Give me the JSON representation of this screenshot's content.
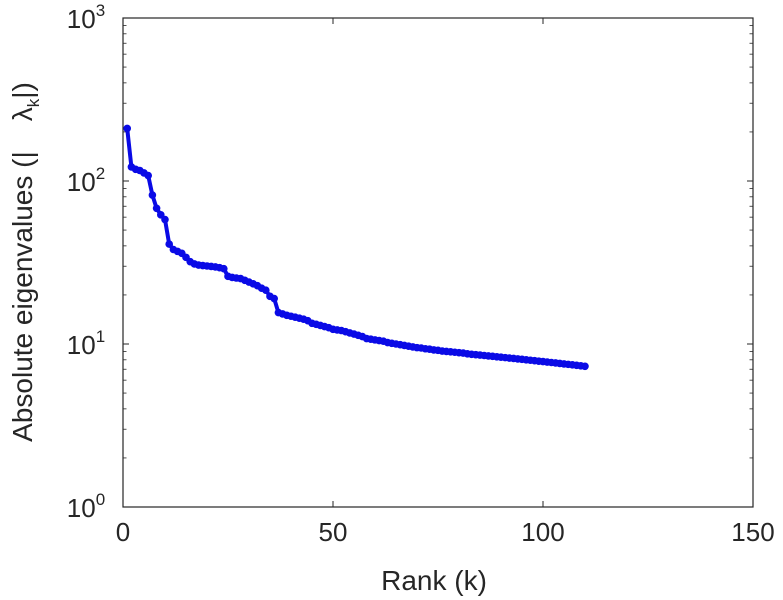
{
  "chart_data": {
    "type": "line",
    "title": "",
    "xlabel": "Rank (k)",
    "ylabel_parts": [
      "Absolute eigenvalues (|",
      "λ",
      "k",
      "|)"
    ],
    "xlim": [
      0,
      150
    ],
    "ylim": [
      1,
      1000
    ],
    "yscale": "log",
    "grid": false,
    "legend": "none",
    "x_ticks": [
      0,
      50,
      100,
      150
    ],
    "y_ticks": [
      {
        "base": "10",
        "exp": "0",
        "value": 1
      },
      {
        "base": "10",
        "exp": "1",
        "value": 10
      },
      {
        "base": "10",
        "exp": "2",
        "value": 100
      },
      {
        "base": "10",
        "exp": "3",
        "value": 1000
      }
    ],
    "line_color": "#0a0ae6",
    "series": [
      {
        "x": [
          1,
          2,
          3,
          4,
          5,
          6,
          7,
          8,
          9,
          10,
          11,
          12,
          13,
          14,
          15,
          16,
          17,
          18,
          19,
          20,
          21,
          22,
          23,
          24,
          25,
          26,
          27,
          28,
          29,
          30,
          31,
          32,
          33,
          34,
          35,
          36,
          37,
          38,
          39,
          40,
          41,
          42,
          43,
          44,
          45,
          46,
          47,
          48,
          49,
          50,
          51,
          52,
          53,
          54,
          55,
          56,
          57,
          58,
          59,
          60,
          61,
          62,
          63,
          64,
          65,
          66,
          67,
          68,
          69,
          70,
          71,
          72,
          73,
          74,
          75,
          76,
          77,
          78,
          79,
          80,
          81,
          82,
          83,
          84,
          85,
          86,
          87,
          88,
          89,
          90,
          91,
          92,
          93,
          94,
          95,
          96,
          97,
          98,
          99,
          100,
          101,
          102,
          103,
          104,
          105,
          106,
          107,
          108,
          109,
          110
        ],
        "y": [
          210,
          122,
          118,
          116,
          112,
          108,
          82,
          68,
          62,
          58,
          41,
          38,
          37,
          36,
          34,
          32,
          31,
          30.5,
          30.3,
          30.1,
          29.9,
          29.7,
          29.4,
          29,
          26,
          25.6,
          25.4,
          25.2,
          24.6,
          24,
          23.4,
          22.8,
          22,
          21.4,
          19.6,
          19,
          15.6,
          15.3,
          15,
          14.8,
          14.6,
          14.4,
          14.2,
          13.9,
          13.4,
          13.2,
          13,
          12.8,
          12.6,
          12.3,
          12.2,
          12.1,
          11.9,
          11.7,
          11.5,
          11.3,
          11.1,
          10.8,
          10.7,
          10.6,
          10.5,
          10.4,
          10.2,
          10.1,
          10.0,
          9.9,
          9.8,
          9.7,
          9.6,
          9.5,
          9.45,
          9.35,
          9.3,
          9.2,
          9.15,
          9.05,
          9.0,
          8.95,
          8.9,
          8.85,
          8.8,
          8.7,
          8.65,
          8.6,
          8.55,
          8.5,
          8.45,
          8.4,
          8.35,
          8.3,
          8.25,
          8.2,
          8.15,
          8.1,
          8.05,
          8.0,
          7.95,
          7.9,
          7.85,
          7.8,
          7.75,
          7.7,
          7.65,
          7.6,
          7.55,
          7.5,
          7.45,
          7.4,
          7.35,
          7.3
        ]
      }
    ]
  }
}
